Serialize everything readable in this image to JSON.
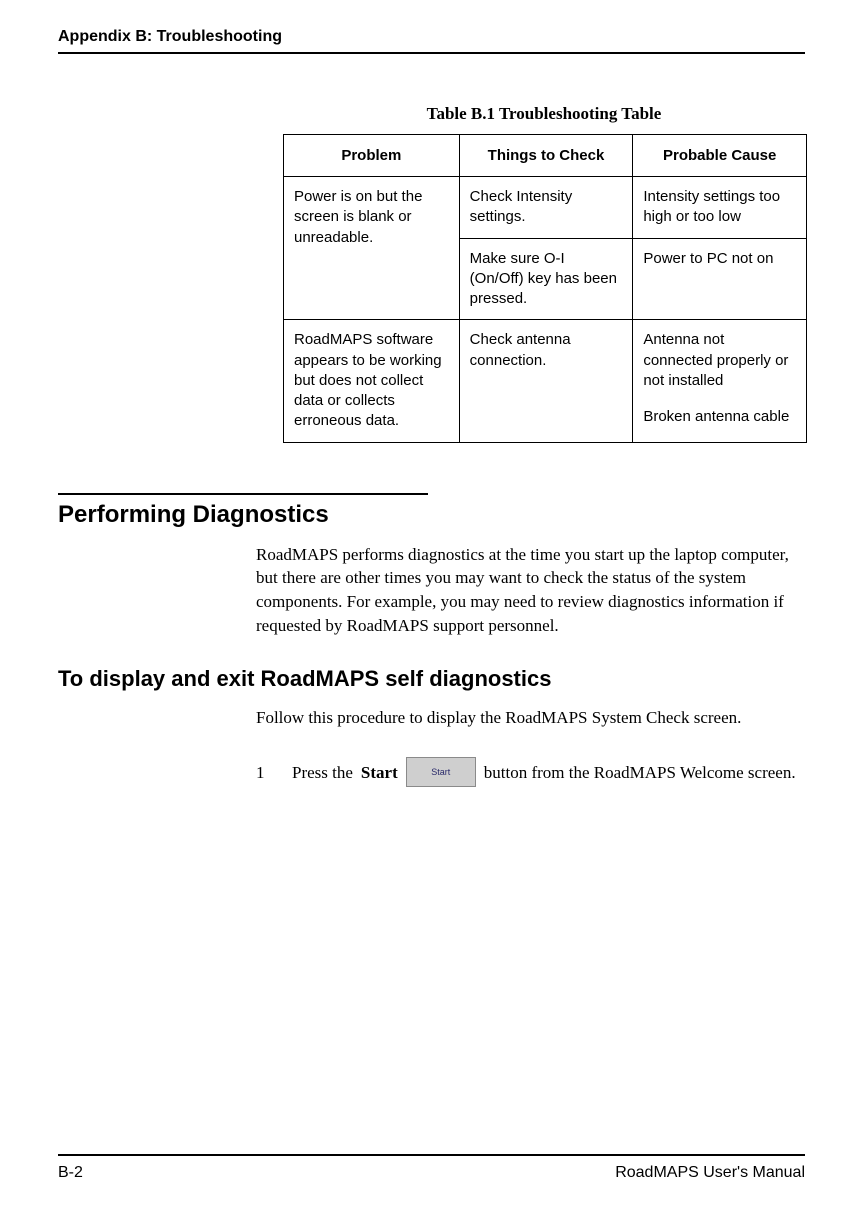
{
  "header": {
    "title": "Appendix B: Troubleshooting"
  },
  "table": {
    "caption": "Table B.1  Troubleshooting Table",
    "headers": {
      "problem": "Problem",
      "check": "Things to Check",
      "cause": "Probable Cause"
    },
    "rows": [
      {
        "problem": "Power is on but the screen is blank or unreadable.",
        "check": "Check Intensity settings.",
        "cause": "Intensity settings too high or too low"
      },
      {
        "problem": "",
        "check": "Make sure O-I (On/Off) key has been pressed.",
        "cause": "Power to PC not on"
      },
      {
        "problem": "RoadMAPS software appears to be working but does not collect data or collects erroneous data.",
        "check": "Check antenna connection.",
        "cause1": "Antenna not connected properly or not installed",
        "cause2": "Broken antenna cable"
      }
    ]
  },
  "section": {
    "heading": "Performing Diagnostics",
    "para": "RoadMAPS performs diagnostics at the time you start up the laptop computer, but there are other times you may want to check the status of the system components. For example, you may need to review diagnostics information if requested by RoadMAPS support personnel."
  },
  "subsection": {
    "heading": "To display and exit RoadMAPS self diagnostics",
    "para": "Follow this procedure to display the RoadMAPS System Check screen.",
    "step_num": "1",
    "step_pre": "Press the ",
    "step_bold": "Start",
    "button_label": "Start",
    "step_post": " button from the RoadMAPS Welcome screen."
  },
  "footer": {
    "left": "B-2",
    "right": "RoadMAPS User's Manual"
  }
}
